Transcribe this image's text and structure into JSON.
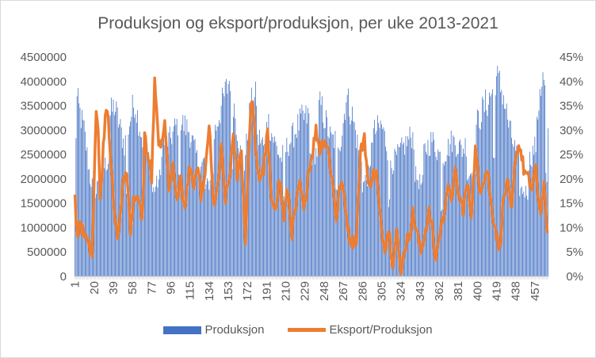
{
  "chart_data": {
    "type": "bar+line",
    "title": "Produksjon og eksport/produksjon, per uke 2013-2021",
    "primary_axis": {
      "ylim": [
        0,
        4500000
      ],
      "ticks": [
        "0",
        "500000",
        "1000000",
        "1500000",
        "2000000",
        "2500000",
        "3000000",
        "3500000",
        "4000000",
        "4500000"
      ]
    },
    "secondary_axis": {
      "ylim": [
        0,
        0.45
      ],
      "ticks": [
        "0%",
        "5%",
        "10%",
        "15%",
        "20%",
        "25%",
        "30%",
        "35%",
        "40%",
        "45%"
      ]
    },
    "x_ticks": [
      "1",
      "20",
      "39",
      "58",
      "77",
      "96",
      "115",
      "134",
      "153",
      "172",
      "191",
      "210",
      "229",
      "248",
      "267",
      "286",
      "305",
      "324",
      "343",
      "362",
      "381",
      "400",
      "419",
      "438",
      "457"
    ],
    "x_count": 470,
    "series": [
      {
        "name": "Produksjon",
        "type": "bar",
        "color": "#4472c4",
        "anchors": [
          [
            1,
            2300000
          ],
          [
            3,
            3600000
          ],
          [
            10,
            3000000
          ],
          [
            16,
            2000000
          ],
          [
            22,
            1700000
          ],
          [
            30,
            3000000
          ],
          [
            40,
            3500000
          ],
          [
            50,
            2700000
          ],
          [
            60,
            3600000
          ],
          [
            70,
            2600000
          ],
          [
            78,
            2300000
          ],
          [
            85,
            2700000
          ],
          [
            95,
            2800000
          ],
          [
            104,
            3200000
          ],
          [
            114,
            3000000
          ],
          [
            125,
            2200000
          ],
          [
            135,
            2600000
          ],
          [
            145,
            3400000
          ],
          [
            155,
            4100000
          ],
          [
            162,
            3000000
          ],
          [
            168,
            2100000
          ],
          [
            175,
            3500000
          ],
          [
            185,
            3800000
          ],
          [
            195,
            3000000
          ],
          [
            205,
            2400000
          ],
          [
            215,
            2800000
          ],
          [
            225,
            3200000
          ],
          [
            235,
            3300000
          ],
          [
            245,
            3500000
          ],
          [
            255,
            2800000
          ],
          [
            265,
            2800000
          ],
          [
            270,
            3700000
          ],
          [
            276,
            3300000
          ],
          [
            284,
            2400000
          ],
          [
            295,
            2900000
          ],
          [
            305,
            3100000
          ],
          [
            315,
            2300000
          ],
          [
            325,
            2600000
          ],
          [
            335,
            2900000
          ],
          [
            345,
            2500000
          ],
          [
            355,
            2800000
          ],
          [
            365,
            2400000
          ],
          [
            375,
            2800000
          ],
          [
            385,
            2600000
          ],
          [
            395,
            2900000
          ],
          [
            405,
            3400000
          ],
          [
            413,
            3700000
          ],
          [
            418,
            4100000
          ],
          [
            425,
            3800000
          ],
          [
            432,
            3000000
          ],
          [
            440,
            2400000
          ],
          [
            450,
            2300000
          ],
          [
            458,
            2700000
          ],
          [
            462,
            3900000
          ],
          [
            466,
            4050000
          ],
          [
            470,
            2800000
          ]
        ]
      },
      {
        "name": "Eksport/Produksjon",
        "type": "line",
        "color": "#ed7d31",
        "anchors": [
          [
            1,
            0.16
          ],
          [
            3,
            0.08
          ],
          [
            6,
            0.12
          ],
          [
            10,
            0.08
          ],
          [
            14,
            0.07
          ],
          [
            18,
            0.05
          ],
          [
            22,
            0.35
          ],
          [
            24,
            0.3
          ],
          [
            26,
            0.15
          ],
          [
            30,
            0.3
          ],
          [
            32,
            0.355
          ],
          [
            34,
            0.33
          ],
          [
            36,
            0.26
          ],
          [
            40,
            0.12
          ],
          [
            44,
            0.08
          ],
          [
            48,
            0.18
          ],
          [
            52,
            0.22
          ],
          [
            56,
            0.1
          ],
          [
            60,
            0.17
          ],
          [
            64,
            0.15
          ],
          [
            68,
            0.12
          ],
          [
            70,
            0.29
          ],
          [
            73,
            0.25
          ],
          [
            77,
            0.2
          ],
          [
            80,
            0.395
          ],
          [
            83,
            0.3
          ],
          [
            86,
            0.25
          ],
          [
            90,
            0.33
          ],
          [
            94,
            0.18
          ],
          [
            98,
            0.23
          ],
          [
            102,
            0.16
          ],
          [
            106,
            0.2
          ],
          [
            110,
            0.13
          ],
          [
            114,
            0.23
          ],
          [
            118,
            0.18
          ],
          [
            122,
            0.22
          ],
          [
            126,
            0.17
          ],
          [
            130,
            0.2
          ],
          [
            134,
            0.315
          ],
          [
            138,
            0.15
          ],
          [
            142,
            0.17
          ],
          [
            146,
            0.26
          ],
          [
            150,
            0.16
          ],
          [
            154,
            0.2
          ],
          [
            158,
            0.28
          ],
          [
            162,
            0.21
          ],
          [
            166,
            0.26
          ],
          [
            170,
            0.07
          ],
          [
            174,
            0.3
          ],
          [
            177,
            0.37
          ],
          [
            180,
            0.25
          ],
          [
            184,
            0.2
          ],
          [
            188,
            0.22
          ],
          [
            192,
            0.295
          ],
          [
            196,
            0.14
          ],
          [
            200,
            0.15
          ],
          [
            204,
            0.2
          ],
          [
            208,
            0.12
          ],
          [
            212,
            0.18
          ],
          [
            216,
            0.09
          ],
          [
            220,
            0.14
          ],
          [
            224,
            0.19
          ],
          [
            228,
            0.13
          ],
          [
            232,
            0.21
          ],
          [
            236,
            0.25
          ],
          [
            240,
            0.3
          ],
          [
            244,
            0.26
          ],
          [
            248,
            0.285
          ],
          [
            252,
            0.26
          ],
          [
            256,
            0.2
          ],
          [
            260,
            0.12
          ],
          [
            264,
            0.19
          ],
          [
            268,
            0.17
          ],
          [
            272,
            0.09
          ],
          [
            276,
            0.07
          ],
          [
            280,
            0.08
          ],
          [
            284,
            0.25
          ],
          [
            288,
            0.29
          ],
          [
            292,
            0.18
          ],
          [
            296,
            0.21
          ],
          [
            300,
            0.21
          ],
          [
            304,
            0.11
          ],
          [
            308,
            0.06
          ],
          [
            312,
            0.1
          ],
          [
            316,
            0.03
          ],
          [
            320,
            0.09
          ],
          [
            324,
            0.01
          ],
          [
            328,
            0.06
          ],
          [
            332,
            0.08
          ],
          [
            336,
            0.13
          ],
          [
            340,
            0.09
          ],
          [
            344,
            0.05
          ],
          [
            348,
            0.09
          ],
          [
            352,
            0.13
          ],
          [
            356,
            0.09
          ],
          [
            358,
            0.03
          ],
          [
            362,
            0.08
          ],
          [
            366,
            0.12
          ],
          [
            370,
            0.18
          ],
          [
            374,
            0.16
          ],
          [
            378,
            0.21
          ],
          [
            382,
            0.16
          ],
          [
            386,
            0.14
          ],
          [
            390,
            0.19
          ],
          [
            394,
            0.13
          ],
          [
            398,
            0.26
          ],
          [
            402,
            0.18
          ],
          [
            406,
            0.2
          ],
          [
            410,
            0.22
          ],
          [
            414,
            0.14
          ],
          [
            418,
            0.1
          ],
          [
            422,
            0.05
          ],
          [
            426,
            0.16
          ],
          [
            430,
            0.19
          ],
          [
            434,
            0.13
          ],
          [
            438,
            0.25
          ],
          [
            442,
            0.27
          ],
          [
            446,
            0.22
          ],
          [
            450,
            0.2
          ],
          [
            454,
            0.18
          ],
          [
            458,
            0.22
          ],
          [
            462,
            0.13
          ],
          [
            466,
            0.18
          ],
          [
            470,
            0.08
          ]
        ]
      }
    ],
    "legend": [
      "Produksjon",
      "Eksport/Produksjon"
    ],
    "legend_position": "bottom",
    "grid": false
  }
}
